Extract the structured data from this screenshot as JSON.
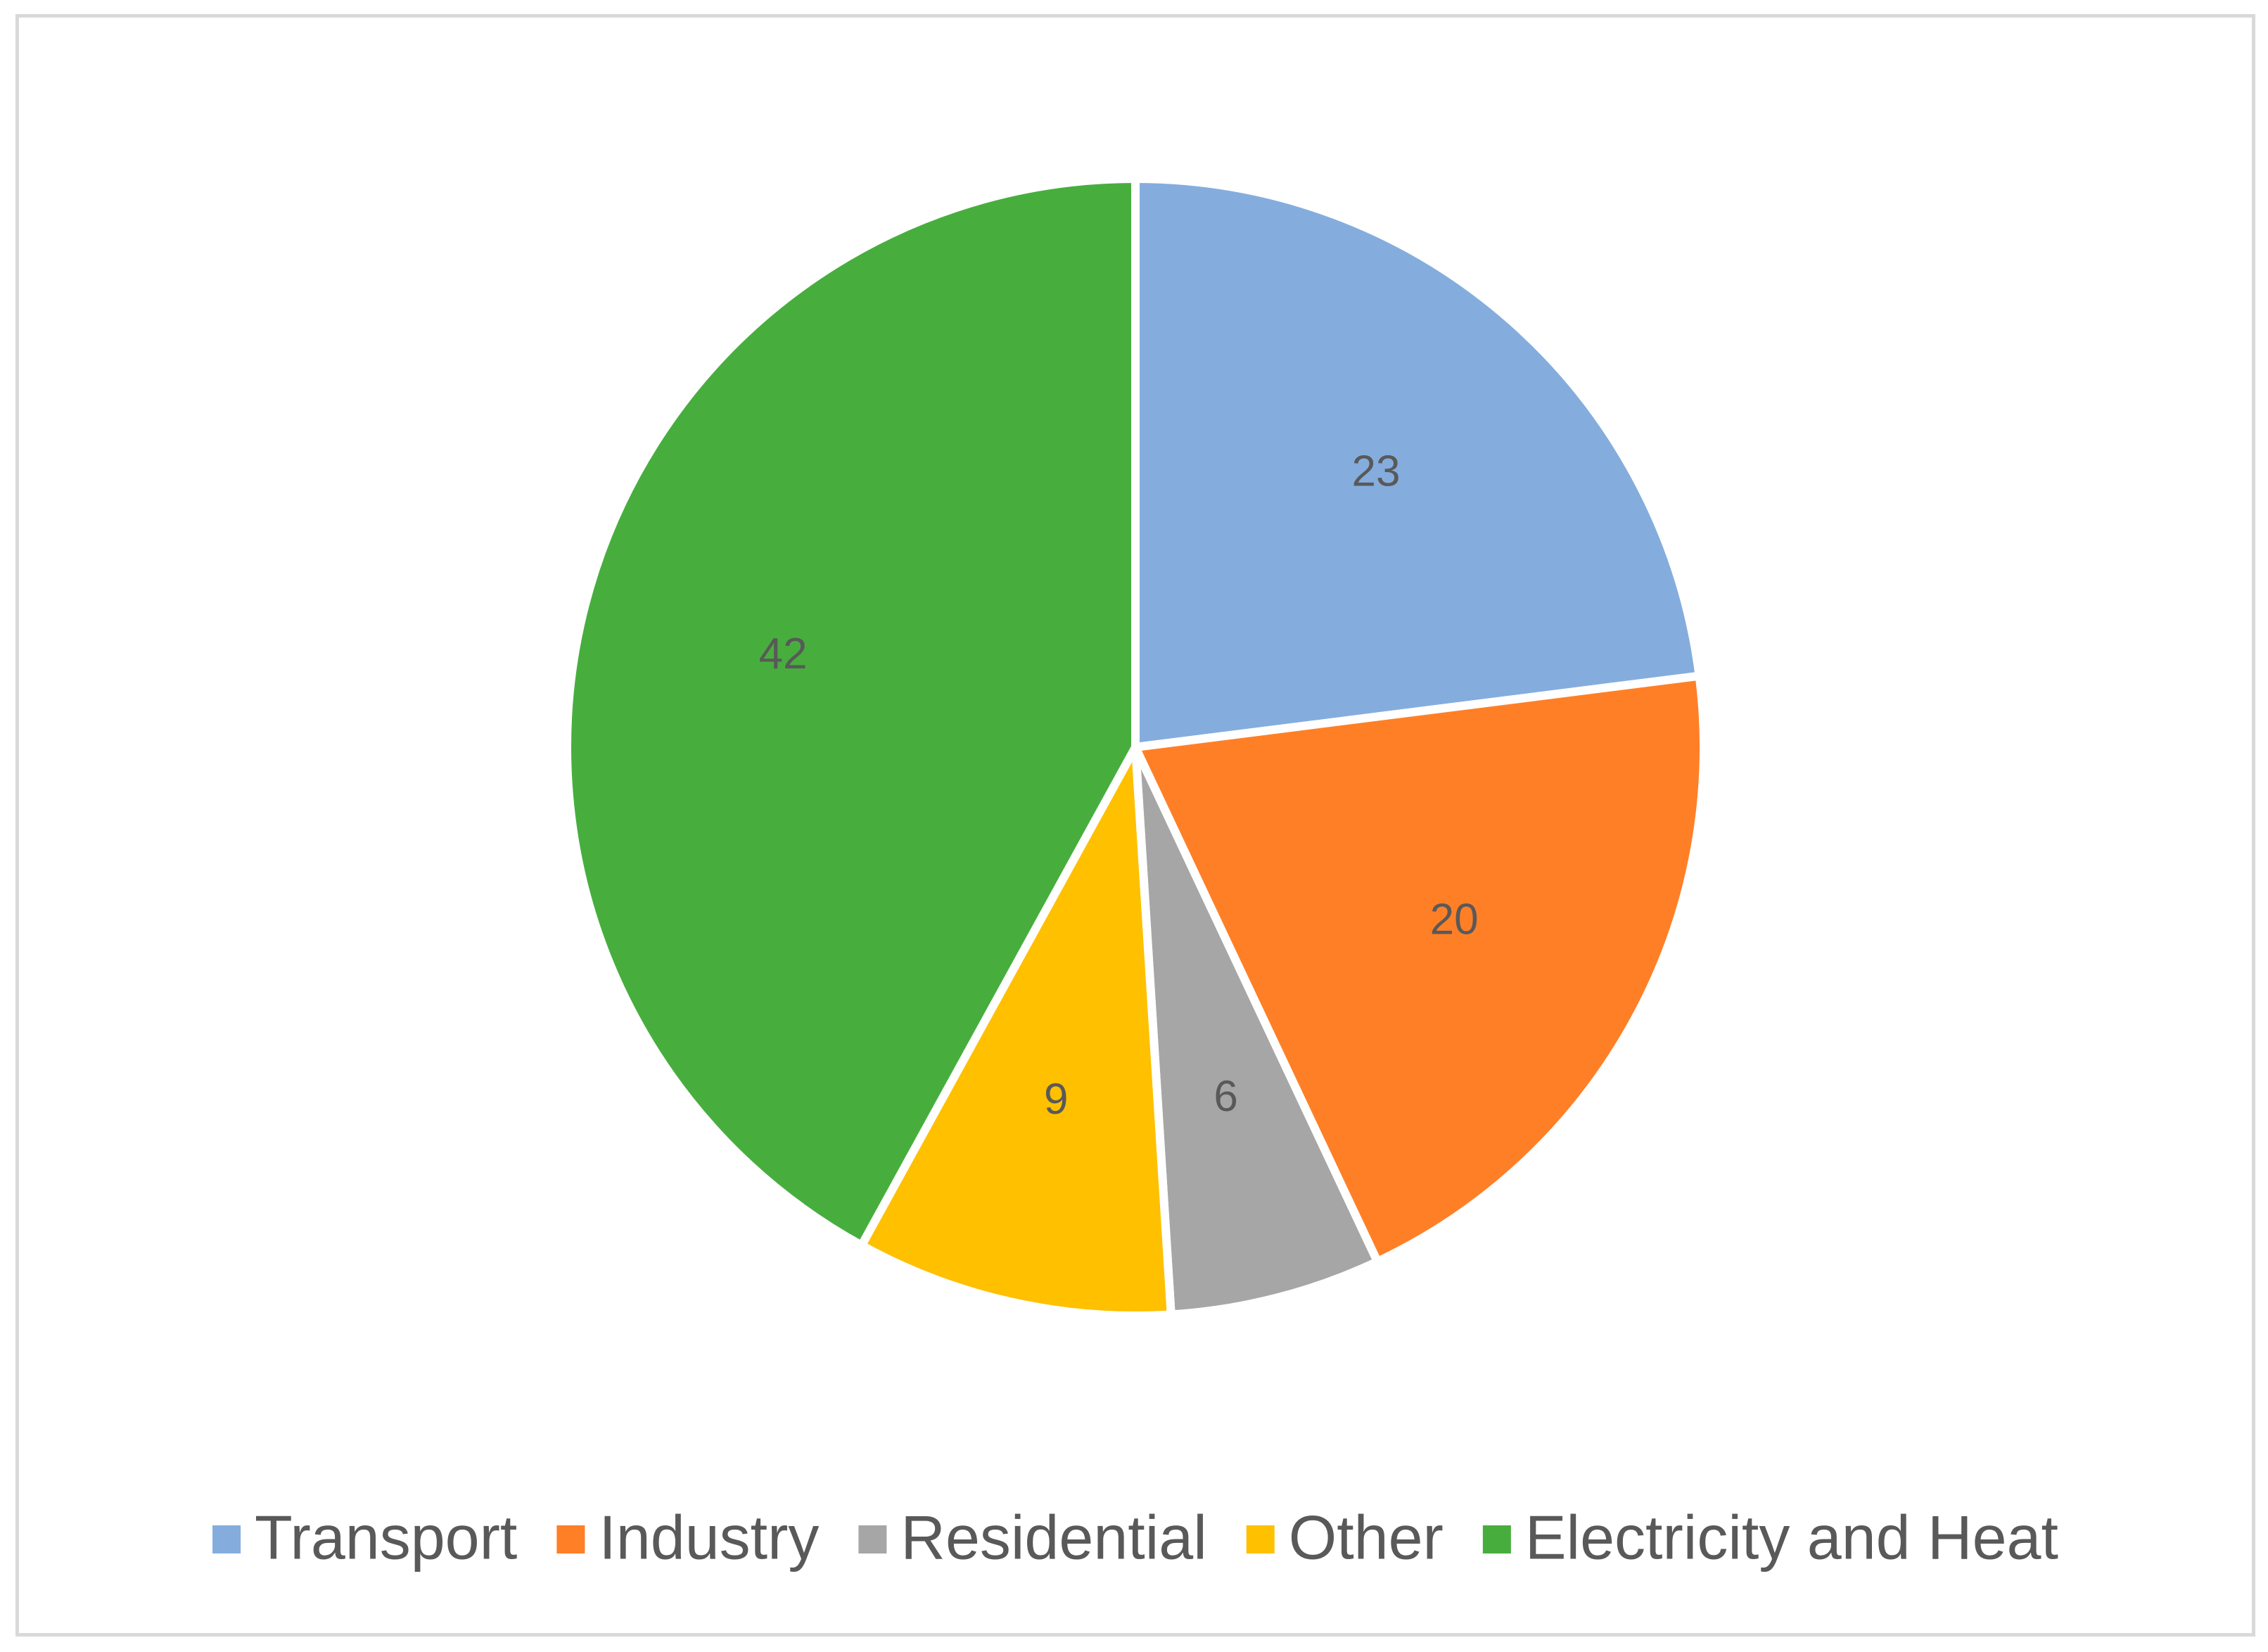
{
  "chart_data": {
    "type": "pie",
    "title": "",
    "categories": [
      "Transport",
      "Industry",
      "Residential",
      "Other",
      "Electricity and Heat"
    ],
    "values": [
      23,
      20,
      6,
      9,
      42
    ],
    "colors": [
      "#84ADDE",
      "#FF7F27",
      "#A6A6A6",
      "#FFC000",
      "#47AE3E"
    ],
    "data_labels": [
      "23",
      "20",
      "6",
      "9",
      "42"
    ],
    "start_angle_deg": 0,
    "direction": "clockwise",
    "legend_position": "bottom"
  }
}
